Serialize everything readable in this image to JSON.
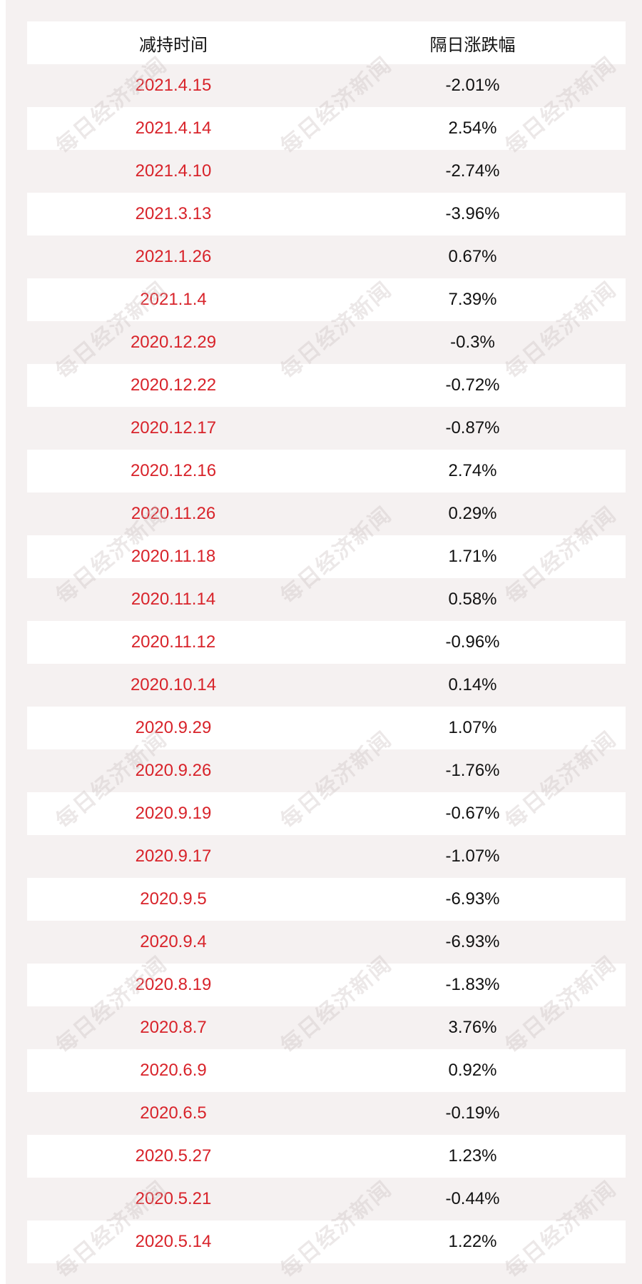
{
  "table": {
    "headers": [
      "减持时间",
      "隔日涨跌幅"
    ],
    "rows": [
      [
        "2021.4.15",
        "-2.01%"
      ],
      [
        "2021.4.14",
        "2.54%"
      ],
      [
        "2021.4.10",
        "-2.74%"
      ],
      [
        "2021.3.13",
        "-3.96%"
      ],
      [
        "2021.1.26",
        "0.67%"
      ],
      [
        "2021.1.4",
        "7.39%"
      ],
      [
        "2020.12.29",
        "-0.3%"
      ],
      [
        "2020.12.22",
        "-0.72%"
      ],
      [
        "2020.12.17",
        "-0.87%"
      ],
      [
        "2020.12.16",
        "2.74%"
      ],
      [
        "2020.11.26",
        "0.29%"
      ],
      [
        "2020.11.18",
        "1.71%"
      ],
      [
        "2020.11.14",
        "0.58%"
      ],
      [
        "2020.11.12",
        "-0.96%"
      ],
      [
        "2020.10.14",
        "0.14%"
      ],
      [
        "2020.9.29",
        "1.07%"
      ],
      [
        "2020.9.26",
        "-1.76%"
      ],
      [
        "2020.9.19",
        "-0.67%"
      ],
      [
        "2020.9.17",
        "-1.07%"
      ],
      [
        "2020.9.5",
        "-6.93%"
      ],
      [
        "2020.9.4",
        "-6.93%"
      ],
      [
        "2020.8.19",
        "-1.83%"
      ],
      [
        "2020.8.7",
        "3.76%"
      ],
      [
        "2020.6.9",
        "0.92%"
      ],
      [
        "2020.6.5",
        "-0.19%"
      ],
      [
        "2020.5.27",
        "1.23%"
      ],
      [
        "2020.5.21",
        "-0.44%"
      ],
      [
        "2020.5.14",
        "1.22%"
      ]
    ]
  },
  "watermark": {
    "text": "每日经济新闻"
  },
  "colors": {
    "date_text": "#d8232a",
    "value_text": "#111111",
    "band": "#f5f1f1"
  }
}
